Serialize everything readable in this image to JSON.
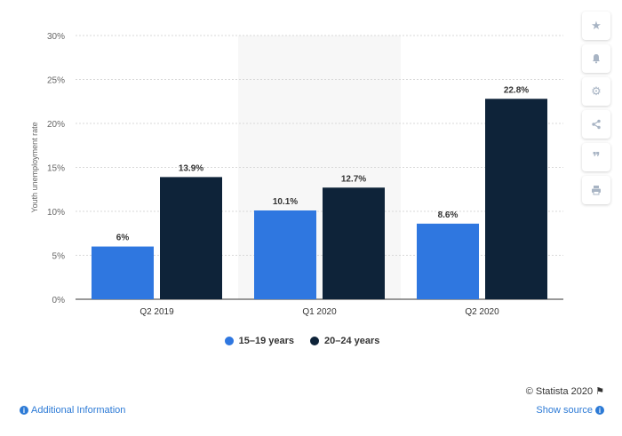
{
  "chart_data": {
    "type": "bar",
    "categories": [
      "Q2 2019",
      "Q1 2020",
      "Q2 2020"
    ],
    "series": [
      {
        "name": "15-19 years",
        "values": [
          6,
          10.1,
          8.6
        ],
        "labels": [
          "6%",
          "10.1%",
          "8.6%"
        ],
        "color": "#2f77e0"
      },
      {
        "name": "20-24 years",
        "values": [
          13.9,
          12.7,
          22.8
        ],
        "labels": [
          "13.9%",
          "12.7%",
          "22.8%"
        ],
        "color": "#0e2339"
      }
    ],
    "ylabel": "Youth unemployment rate",
    "ylim": [
      0,
      30
    ],
    "yticks": [
      0,
      5,
      10,
      15,
      20,
      25,
      30
    ],
    "ytick_labels": [
      "0%",
      "5%",
      "10%",
      "15%",
      "20%",
      "25%",
      "30%"
    ],
    "highlighted_category": "Q1 2020",
    "grid": true,
    "legend_position": "bottom-center"
  },
  "legend": {
    "items": [
      {
        "label": "15–19 years",
        "color": "#2f77e0"
      },
      {
        "label": "20–24 years",
        "color": "#0e2339"
      }
    ]
  },
  "toolbar": {
    "icons": [
      "star-icon",
      "bell-icon",
      "gear-icon",
      "share-icon",
      "quote-icon",
      "print-icon"
    ]
  },
  "footer": {
    "copyright": "© Statista 2020",
    "additional_info": "Additional Information",
    "show_source": "Show source"
  }
}
